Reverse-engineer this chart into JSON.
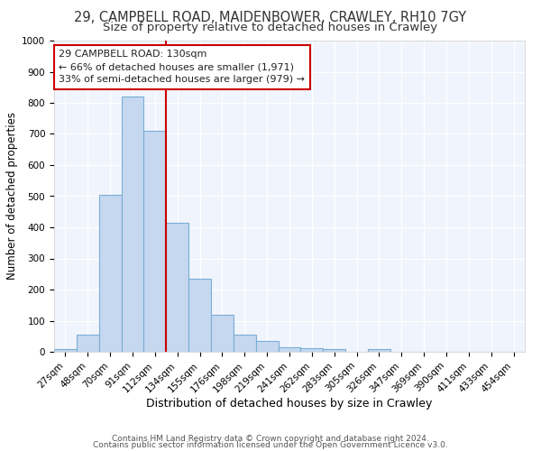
{
  "title1": "29, CAMPBELL ROAD, MAIDENBOWER, CRAWLEY, RH10 7GY",
  "title2": "Size of property relative to detached houses in Crawley",
  "xlabel": "Distribution of detached houses by size in Crawley",
  "ylabel": "Number of detached properties",
  "bar_color": "#c5d8f0",
  "bar_edge_color": "#7aaed4",
  "background_color": "#ffffff",
  "plot_bg_color": "#f0f4fc",
  "grid_color": "#ffffff",
  "categories": [
    "27sqm",
    "48sqm",
    "70sqm",
    "91sqm",
    "112sqm",
    "134sqm",
    "155sqm",
    "176sqm",
    "198sqm",
    "219sqm",
    "241sqm",
    "262sqm",
    "283sqm",
    "305sqm",
    "326sqm",
    "347sqm",
    "369sqm",
    "390sqm",
    "411sqm",
    "433sqm",
    "454sqm"
  ],
  "values": [
    10,
    55,
    505,
    820,
    710,
    415,
    235,
    120,
    55,
    35,
    15,
    12,
    10,
    0,
    10,
    0,
    0,
    0,
    0,
    0,
    0
  ],
  "vline_index": 5,
  "vline_color": "#cc0000",
  "annotation_text": "29 CAMPBELL ROAD: 130sqm\n← 66% of detached houses are smaller (1,971)\n33% of semi-detached houses are larger (979) →",
  "annotation_box_color": "#ffffff",
  "annotation_box_edge": "#cc0000",
  "ylim": [
    0,
    1000
  ],
  "yticks": [
    0,
    100,
    200,
    300,
    400,
    500,
    600,
    700,
    800,
    900,
    1000
  ],
  "footer1": "Contains HM Land Registry data © Crown copyright and database right 2024.",
  "footer2": "Contains public sector information licensed under the Open Government Licence v3.0.",
  "title1_fontsize": 10.5,
  "title2_fontsize": 9.5,
  "xlabel_fontsize": 9,
  "ylabel_fontsize": 8.5,
  "tick_fontsize": 7.5,
  "annotation_fontsize": 8,
  "footer_fontsize": 6.5
}
